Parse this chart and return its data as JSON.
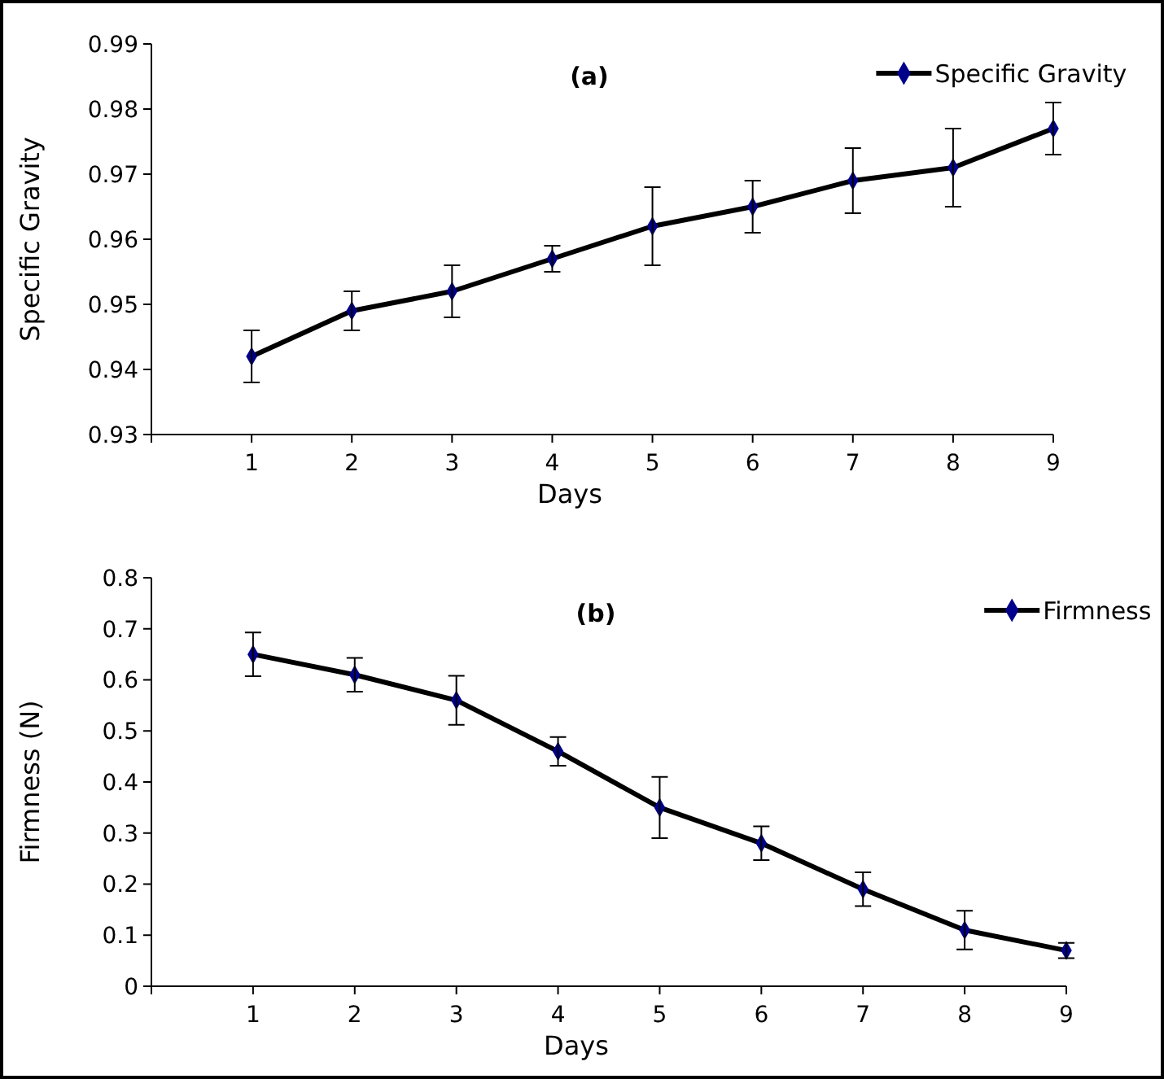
{
  "chart_data": [
    {
      "type": "line",
      "title": "(a)",
      "xlabel": "Days",
      "ylabel": "Specific Gravity",
      "x": [
        1,
        2,
        3,
        4,
        5,
        6,
        7,
        8,
        9
      ],
      "xlim": [
        0,
        9
      ],
      "xticks": [
        {
          "value": 0,
          "label": null
        },
        1,
        2,
        3,
        4,
        5,
        6,
        7,
        8,
        9
      ],
      "ylim": [
        0.93,
        0.99
      ],
      "yticks": [
        0.93,
        0.94,
        0.95,
        0.96,
        0.97,
        0.98,
        0.99
      ],
      "marker": "diamond",
      "legend": "top right",
      "grid": false,
      "series": [
        {
          "name": "Specific Gravity",
          "color": "#00008b",
          "values": [
            0.942,
            0.949,
            0.952,
            0.957,
            0.962,
            0.965,
            0.969,
            0.971,
            0.977
          ],
          "errors": [
            0.004,
            0.003,
            0.004,
            0.002,
            0.006,
            0.004,
            0.005,
            0.006,
            0.004
          ]
        }
      ]
    },
    {
      "type": "line",
      "title": "(b)",
      "xlabel": "Days",
      "ylabel": "Firmness (N)",
      "x": [
        1,
        2,
        3,
        4,
        5,
        6,
        7,
        8,
        9
      ],
      "xlim": [
        0,
        9
      ],
      "xticks": [
        {
          "value": 0,
          "label": null
        },
        1,
        2,
        3,
        4,
        5,
        6,
        7,
        8,
        9
      ],
      "ylim": [
        0,
        0.8
      ],
      "yticks": [
        0,
        0.1,
        0.2,
        0.3,
        0.4,
        0.5,
        0.6,
        0.7,
        0.8
      ],
      "marker": "diamond",
      "legend": "top right",
      "grid": false,
      "series": [
        {
          "name": "Firmness",
          "color": "#00008b",
          "values": [
            0.65,
            0.61,
            0.56,
            0.46,
            0.35,
            0.28,
            0.19,
            0.11,
            0.07
          ],
          "errors": [
            0.043,
            0.033,
            0.048,
            0.028,
            0.06,
            0.033,
            0.033,
            0.038,
            0.015
          ]
        }
      ]
    }
  ]
}
